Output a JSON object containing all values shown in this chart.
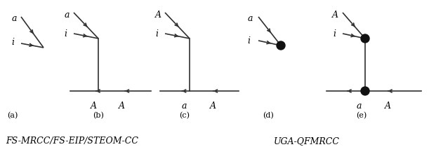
{
  "line_color": "#303030",
  "text_color": "#000000",
  "dot_color": "#111111",
  "label_a": "(a)",
  "label_b": "(b)",
  "label_c": "(c)",
  "label_d": "(d)",
  "label_e": "(e)",
  "caption_left": "FS-MRCC/FS-EIP/STEOM-CC",
  "caption_right": "UGA-QFMRCC",
  "figsize": [
    6.11,
    2.4
  ],
  "dpi": 100,
  "fs_var": 9,
  "fs_paren": 8,
  "fs_caption": 9
}
